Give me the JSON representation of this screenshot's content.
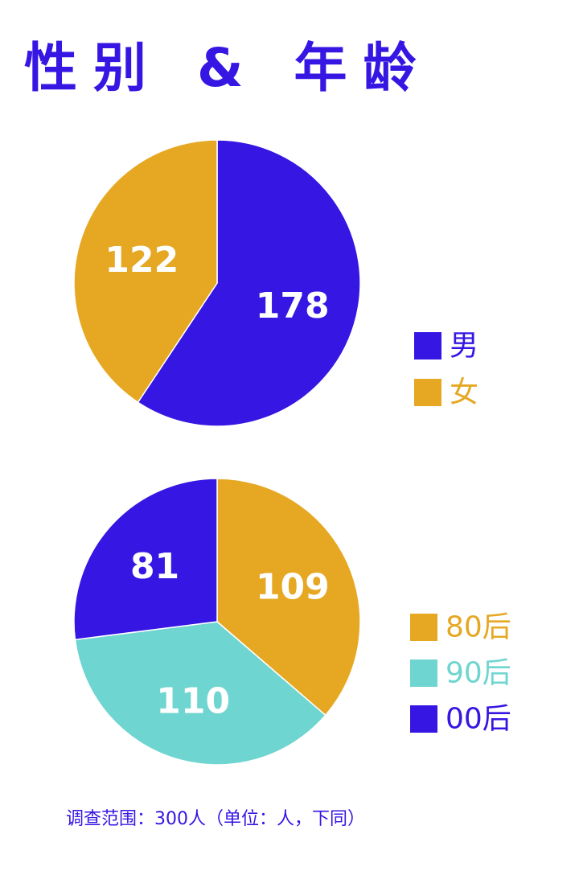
{
  "title": "性别 & 年龄",
  "footnote": "调查范围：300人（单位：人，下同）",
  "colors": {
    "purple": "#3516e3",
    "gold": "#e6a823",
    "teal": "#6fd5d0"
  },
  "chart_data": [
    {
      "type": "pie",
      "slices": [
        {
          "label": "男",
          "value": 178,
          "color": "#3516e3"
        },
        {
          "label": "女",
          "value": 122,
          "color": "#e6a823"
        }
      ]
    },
    {
      "type": "pie",
      "slices": [
        {
          "label": "80后",
          "value": 109,
          "color": "#e6a823"
        },
        {
          "label": "90后",
          "value": 110,
          "color": "#6fd5d0"
        },
        {
          "label": "00后",
          "value": 81,
          "color": "#3516e3"
        }
      ]
    }
  ]
}
